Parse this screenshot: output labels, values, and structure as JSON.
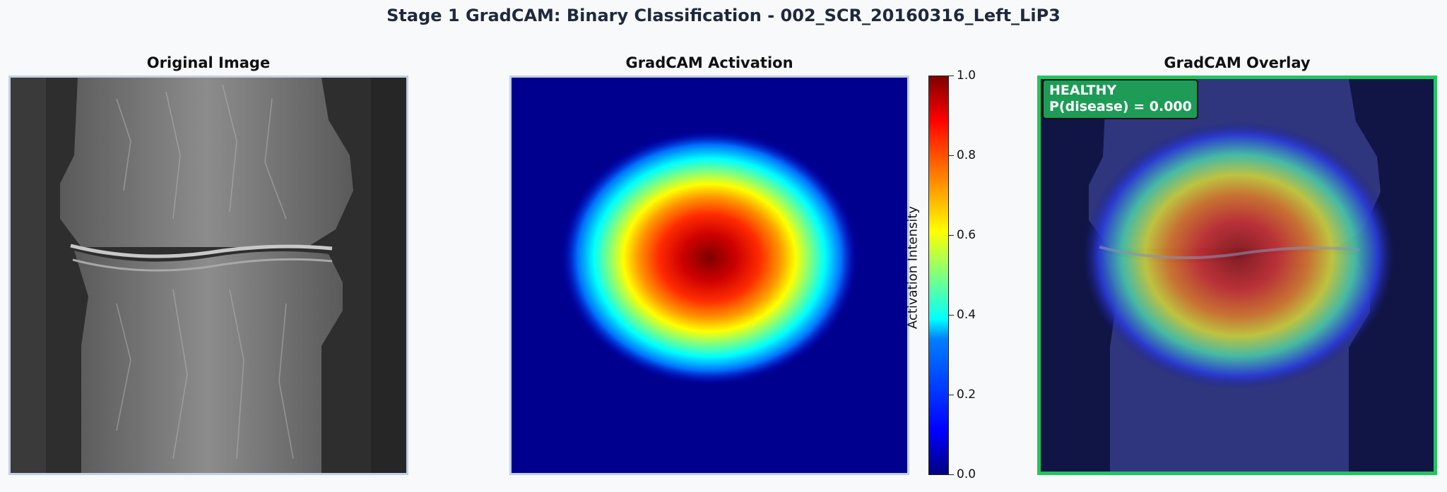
{
  "suptitle": "Stage 1 GradCAM: Binary Classification - 002_SCR_20160316_Left_LiP3",
  "panels": {
    "original": {
      "title": "Original Image"
    },
    "activation": {
      "title": "GradCAM Activation"
    },
    "overlay": {
      "title": "GradCAM Overlay"
    }
  },
  "colorbar": {
    "label": "Activation Intensity",
    "ticks": [
      "0.0",
      "0.2",
      "0.4",
      "0.6",
      "0.8",
      "1.0"
    ],
    "range": [
      0.0,
      1.0
    ],
    "colormap": "jet"
  },
  "prediction": {
    "label": "HEALTHY",
    "probability_text": "P(disease) = 0.000",
    "badge_color": "#1e9c57",
    "frame_color": "#22c55e"
  }
}
